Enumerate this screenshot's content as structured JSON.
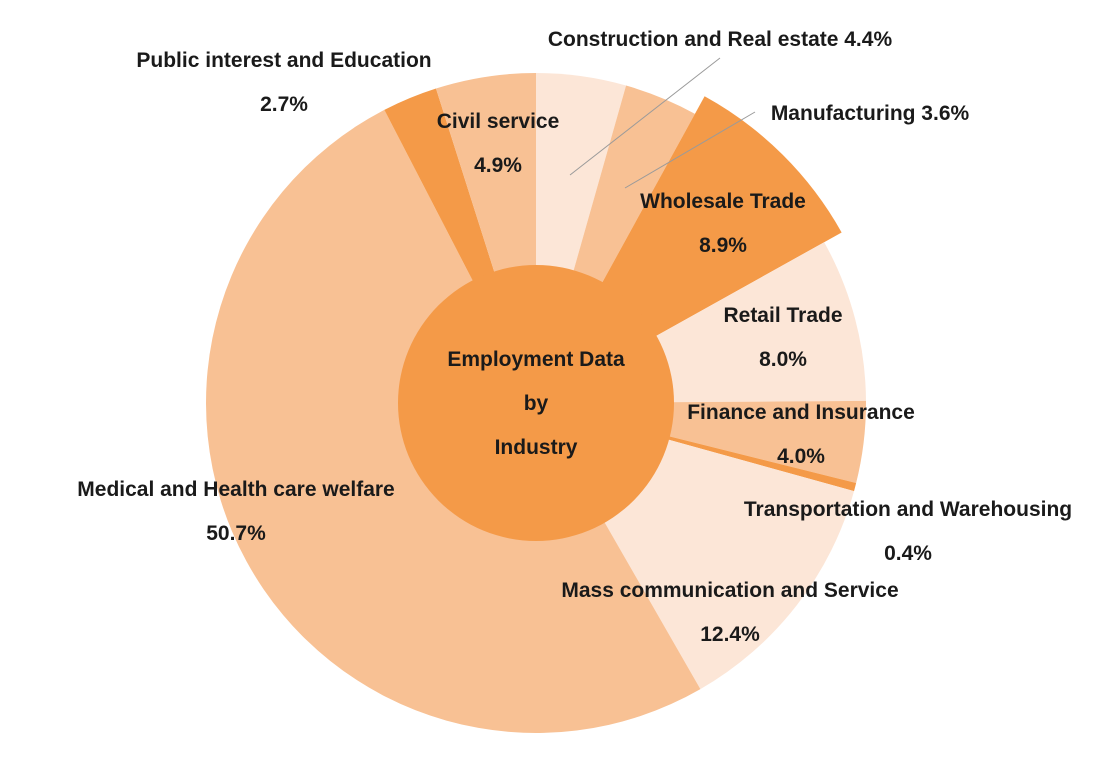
{
  "chart_data": {
    "type": "pie",
    "title": "",
    "center_label": [
      "Employment Data",
      "by",
      "Industry"
    ],
    "palette": {
      "light": "#FCE6D7",
      "medium": "#F8C194",
      "dark": "#F49A48"
    },
    "slices": [
      {
        "label": "Construction and Real estate",
        "value": 4.4,
        "value_label": "4.4%",
        "shade": "light"
      },
      {
        "label": "Manufacturing",
        "value": 3.6,
        "value_label": "3.6%",
        "shade": "medium"
      },
      {
        "label": "Wholesale Trade",
        "value": 8.9,
        "value_label": "8.9%",
        "shade": "dark"
      },
      {
        "label": "Retail Trade",
        "value": 8.0,
        "value_label": "8.0%",
        "shade": "light"
      },
      {
        "label": "Finance and Insurance",
        "value": 4.0,
        "value_label": "4.0%",
        "shade": "medium"
      },
      {
        "label": "Transportation and Warehousing",
        "value": 0.4,
        "value_label": "0.4%",
        "shade": "dark"
      },
      {
        "label": "Mass communication and Service",
        "value": 12.4,
        "value_label": "12.4%",
        "shade": "light"
      },
      {
        "label": "Medical and Health care welfare",
        "value": 50.7,
        "value_label": "50.7%",
        "shade": "medium"
      },
      {
        "label": "Public interest and Education",
        "value": 2.7,
        "value_label": "2.7%",
        "shade": "dark"
      },
      {
        "label": "Civil service",
        "value": 4.9,
        "value_label": "4.9%",
        "shade": "medium"
      }
    ]
  }
}
